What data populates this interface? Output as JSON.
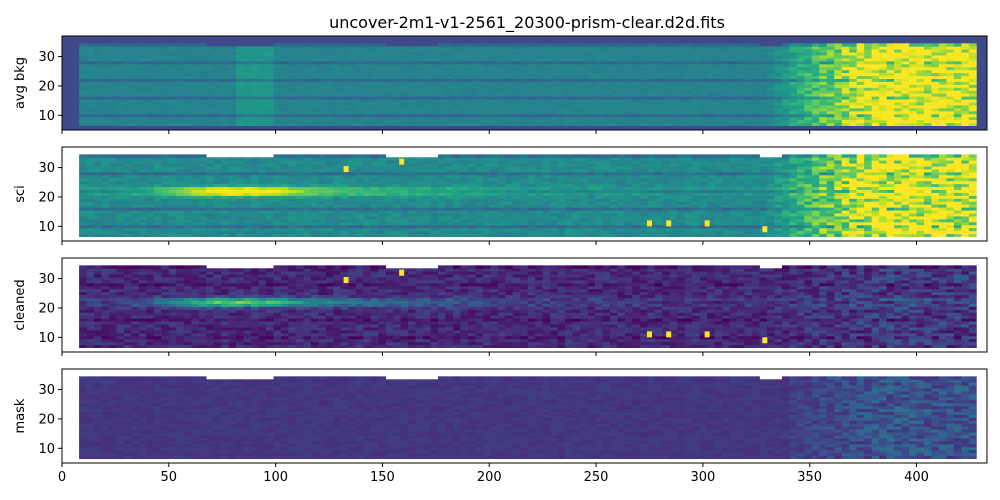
{
  "chart_data": {
    "type": "heatmap",
    "title": "uncover-2m1-v1-2561_20300-prism-clear.d2d.fits",
    "colormap": "viridis",
    "shared_x": true,
    "xlim": [
      0,
      433
    ],
    "ylim": [
      5,
      37
    ],
    "x_ticks": [
      0,
      50,
      100,
      150,
      200,
      250,
      300,
      350,
      400
    ],
    "y_ticks": [
      10,
      20,
      30
    ],
    "background_color": "#3e4a89",
    "panels": [
      {
        "ylabel": "avg bkg",
        "kind": "avg_bkg"
      },
      {
        "ylabel": "sci",
        "kind": "sci"
      },
      {
        "ylabel": "cleaned",
        "kind": "cleaned"
      },
      {
        "ylabel": "mask",
        "kind": "mask"
      }
    ],
    "features": {
      "trace_row": 22,
      "trace_peak_x": 80,
      "hot_pixels": [
        {
          "x": 133,
          "y": 29.5
        },
        {
          "x": 159,
          "y": 32
        },
        {
          "x": 275,
          "y": 11
        },
        {
          "x": 284,
          "y": 11
        },
        {
          "x": 302,
          "y": 11
        },
        {
          "x": 329,
          "y": 9
        }
      ]
    }
  }
}
